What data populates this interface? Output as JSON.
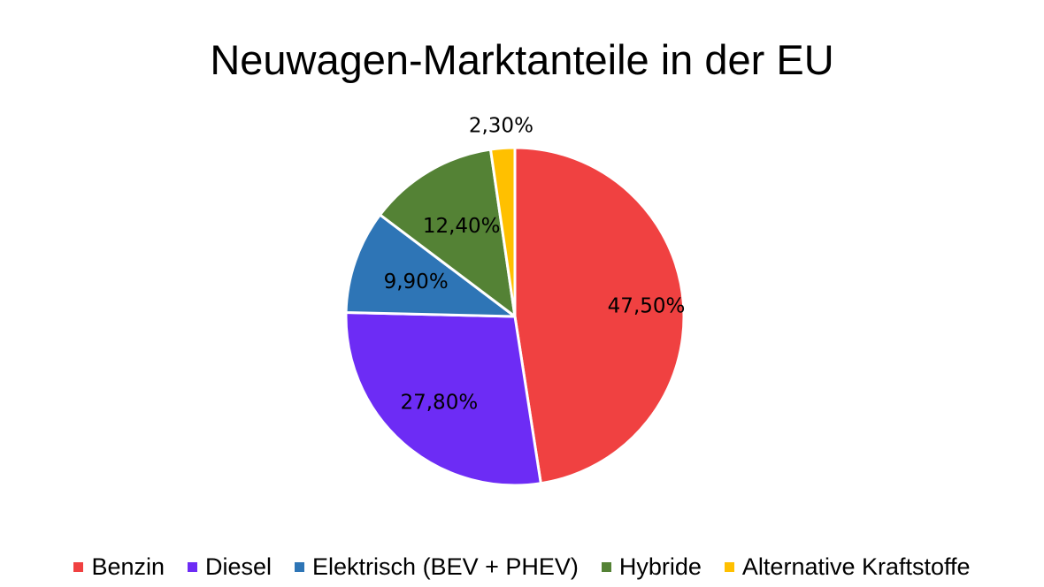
{
  "chart_data": {
    "type": "pie",
    "title": "Neuwagen-Marktanteile in der EU",
    "slices": [
      {
        "name": "Benzin",
        "value": 47.5,
        "label": "47,50%",
        "color": "#F04141"
      },
      {
        "name": "Diesel",
        "value": 27.8,
        "label": "27,80%",
        "color": "#6D2CF5"
      },
      {
        "name": "Elektrisch (BEV + PHEV)",
        "value": 9.9,
        "label": "9,90%",
        "color": "#2E75B6"
      },
      {
        "name": "Hybride",
        "value": 12.4,
        "label": "12,40%",
        "color": "#548235"
      },
      {
        "name": "Alternative Kraftstoffe",
        "value": 2.3,
        "label": "2,30%",
        "color": "#FFC000"
      }
    ],
    "legend_position": "bottom",
    "start_angle": "top",
    "direction": "clockwise"
  }
}
